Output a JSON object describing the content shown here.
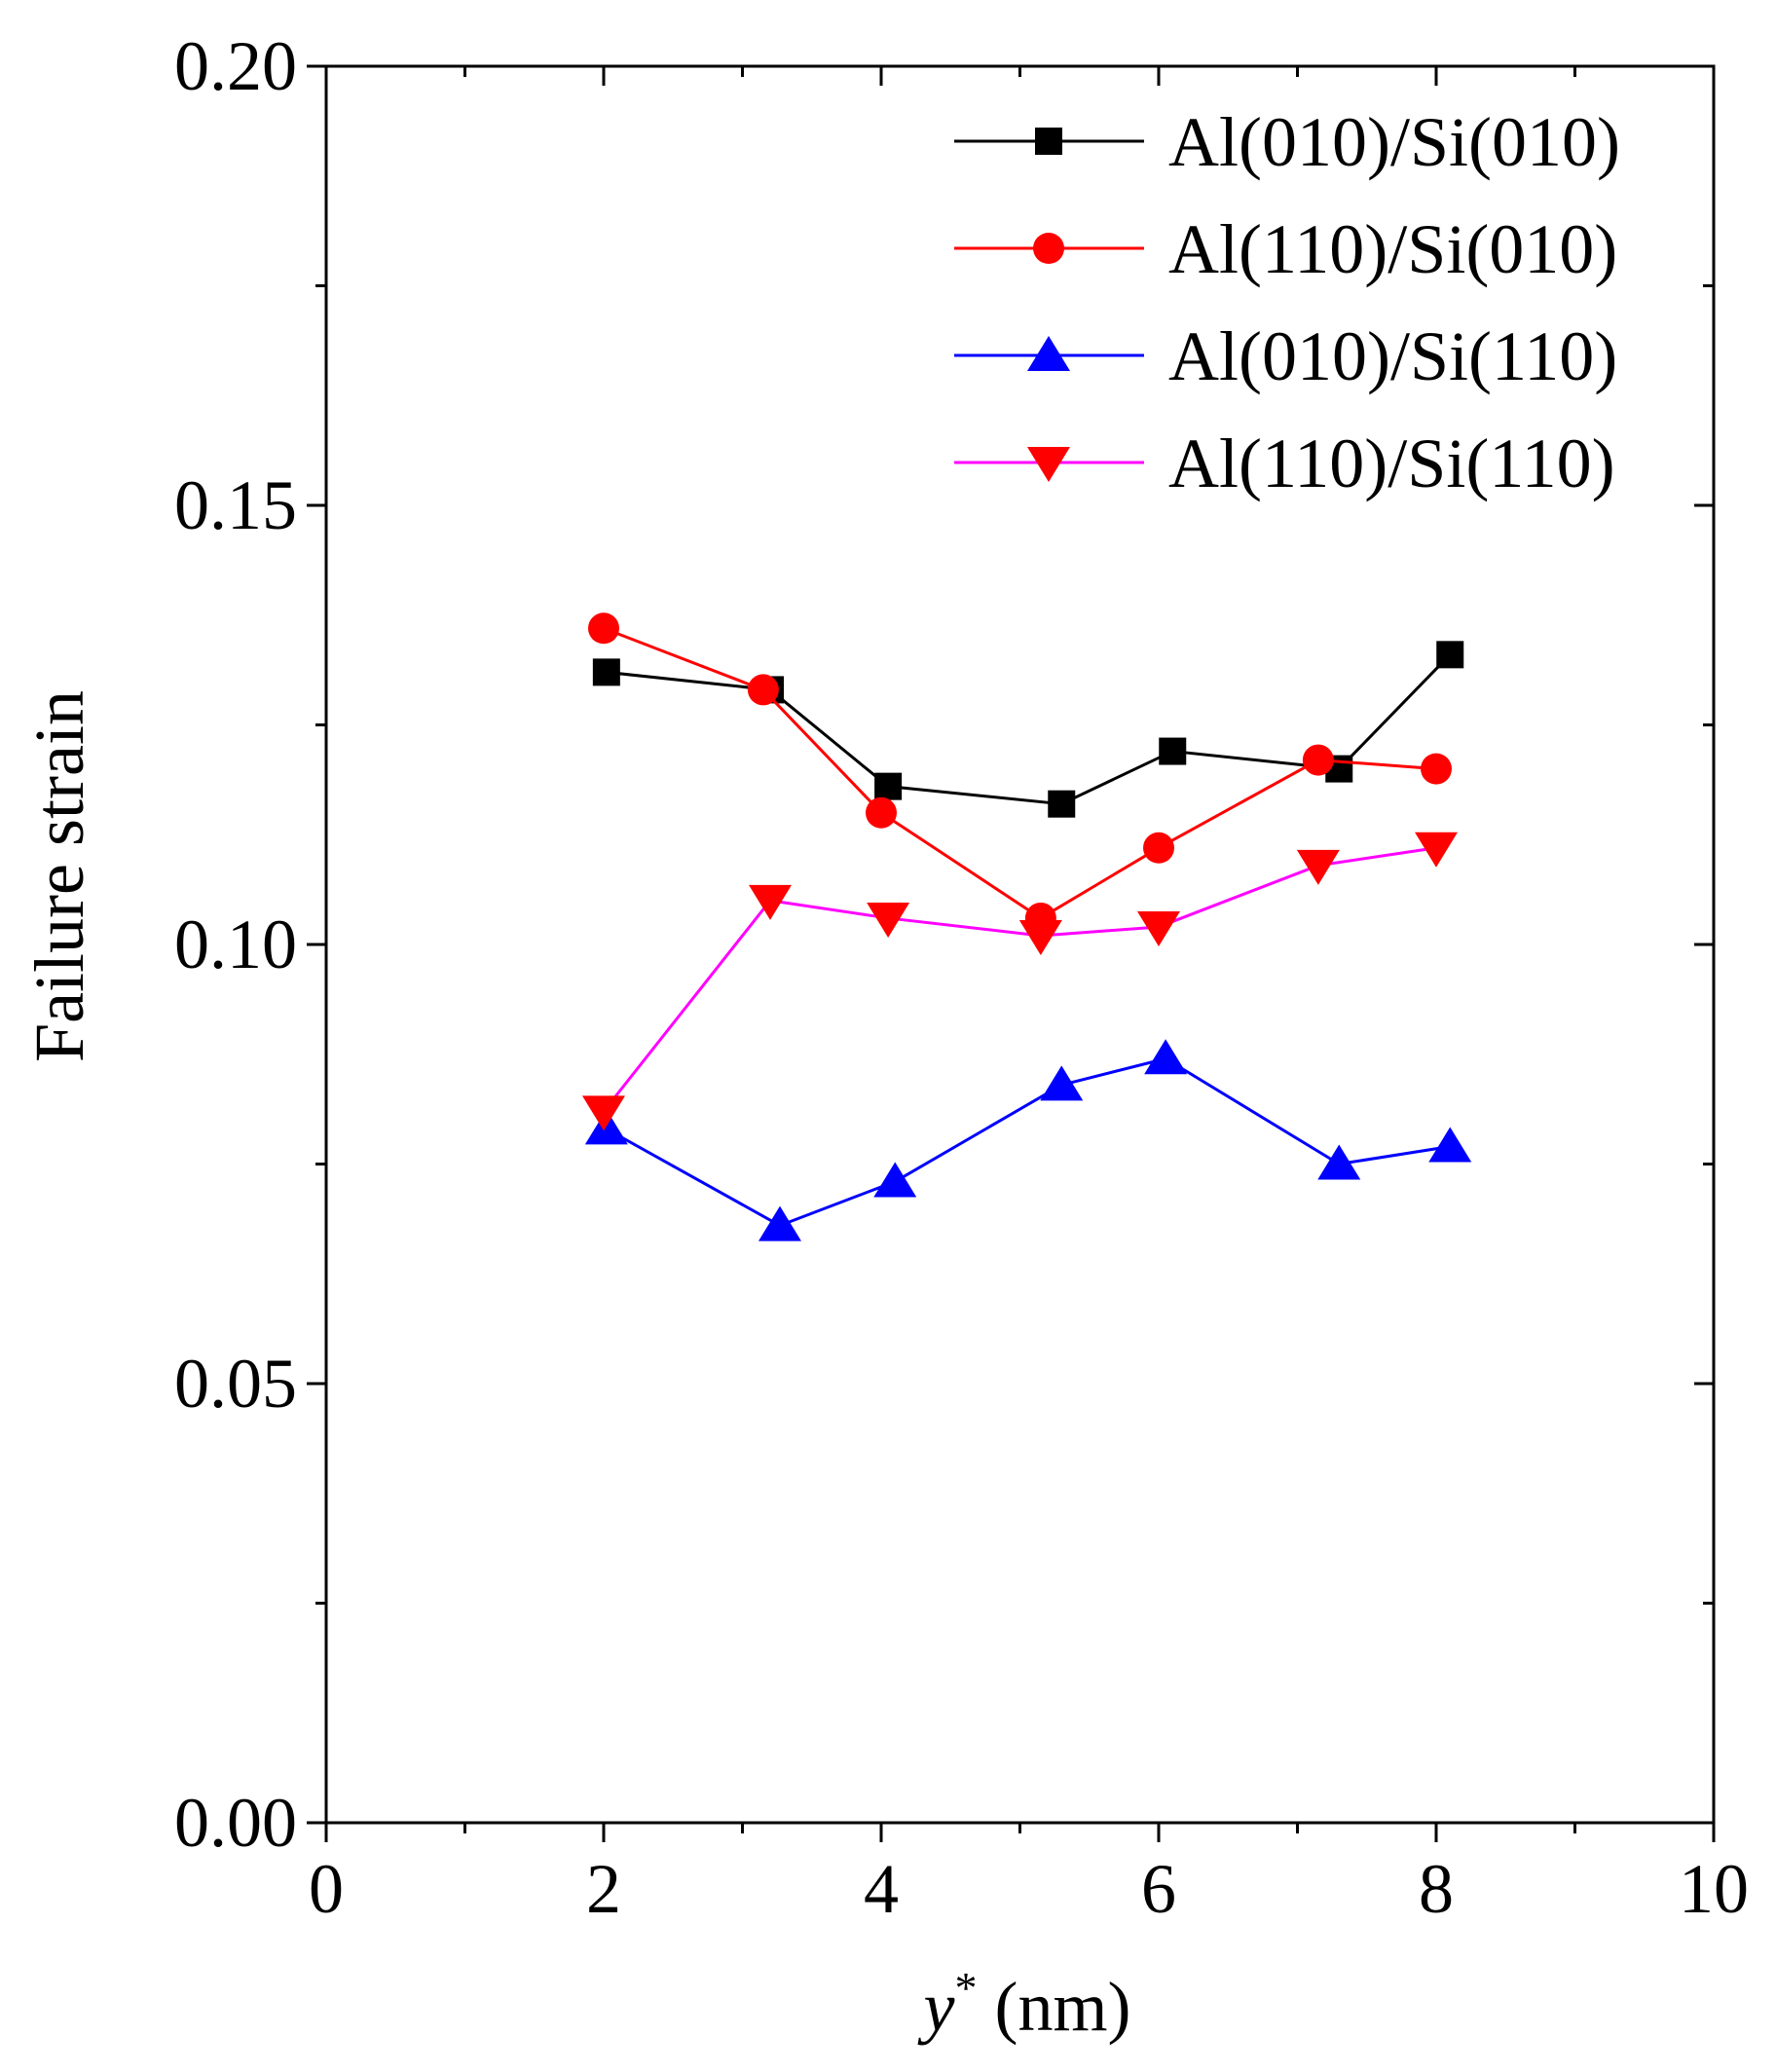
{
  "chart_data": {
    "type": "line",
    "title": "",
    "xlabel_italic": "y",
    "xlabel_sup": "*",
    "xlabel_unit": " (nm)",
    "ylabel": "Failure strain",
    "xlim": [
      0,
      10
    ],
    "ylim": [
      0,
      0.2
    ],
    "xticks": [
      0,
      2,
      4,
      6,
      8,
      10
    ],
    "xtick_labels": [
      "0",
      "2",
      "4",
      "6",
      "8",
      "10"
    ],
    "yticks": [
      0,
      0.05,
      0.1,
      0.15,
      0.2
    ],
    "ytick_labels": [
      "0.00",
      "0.05",
      "0.10",
      "0.15",
      "0.20"
    ],
    "grid": false,
    "legend_position": "top-right",
    "series": [
      {
        "name": "Al(010)/Si(010)",
        "color": "#000000",
        "marker": "square",
        "x": [
          2.02,
          3.2,
          4.05,
          5.3,
          6.1,
          7.3,
          8.1
        ],
        "y": [
          0.131,
          0.129,
          0.118,
          0.116,
          0.122,
          0.12,
          0.133
        ]
      },
      {
        "name": "Al(110)/Si(010)",
        "color": "#ff0000",
        "marker": "circle",
        "x": [
          2.0,
          3.15,
          4.0,
          5.15,
          6.0,
          7.15,
          8.0
        ],
        "y": [
          0.136,
          0.129,
          0.115,
          0.103,
          0.111,
          0.121,
          0.12
        ]
      },
      {
        "name": "Al(010)/Si(110)",
        "color": "#0000ff",
        "marker": "triangle-up",
        "x": [
          2.02,
          3.27,
          4.1,
          5.3,
          6.05,
          7.3,
          8.1
        ],
        "y": [
          0.079,
          0.068,
          0.073,
          0.084,
          0.087,
          0.075,
          0.077
        ]
      },
      {
        "name": "Al(110)/Si(110)",
        "color": "#ff00ff",
        "marker_color": "#ff0000",
        "marker": "triangle-down",
        "x": [
          2.0,
          3.2,
          4.05,
          5.15,
          6.0,
          7.15,
          8.0
        ],
        "y": [
          0.081,
          0.105,
          0.103,
          0.101,
          0.102,
          0.109,
          0.111
        ]
      }
    ]
  }
}
